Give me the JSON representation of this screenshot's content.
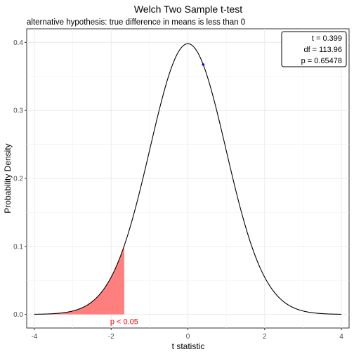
{
  "chart_data": {
    "type": "line",
    "title": "Welch Two Sample t-test",
    "subtitle": "alternative hypothesis: true difference in means is less than 0",
    "xlabel": "t statistic",
    "ylabel": "Probability Density",
    "xlim": [
      -4.2,
      4.2
    ],
    "ylim": [
      -0.02,
      0.42
    ],
    "x_ticks": [
      -4,
      -2,
      0,
      2,
      4
    ],
    "x_tick_labels": [
      "-4",
      "-2",
      "0",
      "2",
      "4"
    ],
    "y_ticks": [
      0.0,
      0.1,
      0.2,
      0.3,
      0.4
    ],
    "y_tick_labels": [
      "0.0",
      "0.1",
      "0.2",
      "0.3",
      "0.4"
    ],
    "grid": true,
    "distribution": {
      "name": "t",
      "df": 113.96,
      "x_range": [
        -4,
        4
      ]
    },
    "series": [
      {
        "x": [
          -4,
          -3.5,
          -3,
          -2.5,
          -2,
          -1.5,
          -1,
          -0.5,
          0,
          0.5,
          1,
          1.5,
          2,
          2.5,
          3,
          3.5,
          4
        ],
        "values": [
          0.0002,
          0.001,
          0.005,
          0.0178,
          0.0547,
          0.1295,
          0.2412,
          0.3518,
          0.3986,
          0.3518,
          0.2412,
          0.1295,
          0.0547,
          0.0178,
          0.005,
          0.001,
          0.0002
        ],
        "color": "#000000"
      }
    ],
    "observed_point": {
      "x": 0.399,
      "y": 0.3674,
      "color": "#0000ff"
    },
    "rejection_region": {
      "from": -4,
      "to": -1.658,
      "color": "#ff7f7f",
      "label": "p < 0.05",
      "label_color": "#ff0000"
    },
    "stats_box": {
      "position": "top-right",
      "lines": [
        "t = 0.399",
        "df = 113.96",
        "p = 0.65478"
      ]
    }
  }
}
